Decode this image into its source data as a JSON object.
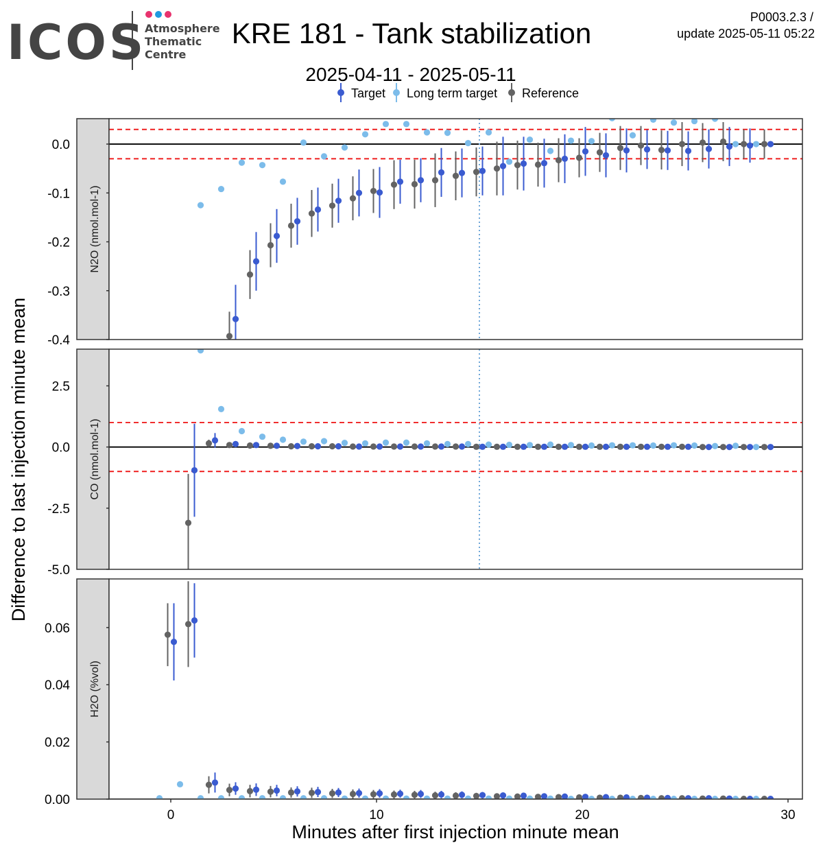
{
  "logo": {
    "wordmark": "ICOS",
    "line1": "Atmosphere",
    "line2": "Thematic",
    "line3": "Centre",
    "dot_colors": [
      "#e8336e",
      "#1f9ae0",
      "#e8336e"
    ]
  },
  "header": {
    "title": "KRE 181 - Tank stabilization",
    "subtitle": "2025-04-11 - 2025-05-11",
    "code": "P0003.2.3 /",
    "update": "update  2025-05-11 05:22"
  },
  "legend": [
    {
      "label": "Target",
      "color": "#3a5bd0"
    },
    {
      "label": "Long term target",
      "color": "#7cbcea"
    },
    {
      "label": "Reference",
      "color": "#636363"
    }
  ],
  "axes": {
    "xlabel": "Minutes after first injection minute mean",
    "ylabel": "Difference to last injection minute mean",
    "xlim": [
      -3,
      30.7
    ],
    "xticks": [
      {
        "v": 0,
        "t": "0"
      },
      {
        "v": 10,
        "t": "10"
      },
      {
        "v": 20,
        "t": "20"
      },
      {
        "v": 30,
        "t": "30"
      }
    ],
    "vline_x": 15
  },
  "chart_data": [
    {
      "type": "scatter",
      "strip_label": "N2O (nmol.mol-1)",
      "ylim": [
        -0.4,
        0.052
      ],
      "yticks": [
        {
          "v": 0.0,
          "t": "0.0"
        },
        {
          "v": -0.1,
          "t": "-0.1"
        },
        {
          "v": -0.2,
          "t": "-0.2"
        },
        {
          "v": -0.3,
          "t": "-0.3"
        },
        {
          "v": -0.4,
          "t": "-0.4"
        }
      ],
      "threshold": 0.03,
      "series": [
        {
          "name": "Reference",
          "x": [
            3,
            4,
            5,
            6,
            7,
            8,
            9,
            10,
            11,
            12,
            13,
            14,
            15,
            16,
            17,
            18,
            19,
            20,
            21,
            22,
            23,
            24,
            25,
            26,
            27,
            28,
            29
          ],
          "y": [
            -0.393,
            -0.267,
            -0.207,
            -0.167,
            -0.142,
            -0.126,
            -0.111,
            -0.096,
            -0.083,
            -0.082,
            -0.074,
            -0.065,
            -0.057,
            -0.05,
            -0.043,
            -0.042,
            -0.033,
            -0.028,
            -0.017,
            -0.008,
            -0.003,
            -0.012,
            0.0,
            0.003,
            0.005,
            0.0,
            0.0
          ],
          "err": [
            0.05,
            0.05,
            0.045,
            0.045,
            0.048,
            0.045,
            0.045,
            0.045,
            0.05,
            0.05,
            0.055,
            0.05,
            0.05,
            0.055,
            0.05,
            0.045,
            0.045,
            0.04,
            0.04,
            0.045,
            0.04,
            0.04,
            0.045,
            0.04,
            0.04,
            0.03,
            0.03
          ]
        },
        {
          "name": "Target",
          "x": [
            3,
            4,
            5,
            6,
            7,
            8,
            9,
            10,
            11,
            12,
            13,
            14,
            15,
            16,
            17,
            18,
            19,
            20,
            21,
            22,
            23,
            24,
            25,
            26,
            27,
            28,
            29
          ],
          "y": [
            -0.358,
            -0.24,
            -0.188,
            -0.158,
            -0.134,
            -0.116,
            -0.1,
            -0.099,
            -0.077,
            -0.074,
            -0.058,
            -0.059,
            -0.055,
            -0.045,
            -0.04,
            -0.039,
            -0.03,
            -0.015,
            -0.023,
            -0.013,
            -0.011,
            -0.013,
            -0.014,
            -0.01,
            -0.005,
            -0.003,
            0.0
          ],
          "err": [
            0.07,
            0.06,
            0.055,
            0.048,
            0.045,
            0.045,
            0.048,
            0.052,
            0.045,
            0.045,
            0.05,
            0.05,
            0.05,
            0.06,
            0.055,
            0.05,
            0.05,
            0.05,
            0.045,
            0.045,
            0.04,
            0.04,
            0.04,
            0.04,
            0.04,
            0.035,
            0.0
          ]
        },
        {
          "name": "Long term target",
          "x": [
            2,
            3,
            4,
            5,
            6,
            7,
            8,
            9,
            10,
            11,
            12,
            13,
            14,
            15,
            16,
            17,
            18,
            19,
            20,
            21,
            22,
            23,
            24,
            25,
            26,
            27,
            28,
            29
          ],
          "y": [
            -0.125,
            -0.092,
            -0.038,
            -0.043,
            -0.077,
            0.003,
            -0.025,
            -0.007,
            0.02,
            0.041,
            0.041,
            0.024,
            0.023,
            0.002,
            0.024,
            -0.036,
            0.009,
            -0.014,
            0.007,
            0.006,
            0.053,
            0.018,
            0.05,
            0.044,
            0.047,
            0.052,
            0.0,
            0.0
          ]
        }
      ]
    },
    {
      "type": "scatter",
      "strip_label": "CO (nmol.mol-1)",
      "ylim": [
        -5.0,
        4.0
      ],
      "yticks": [
        {
          "v": 2.5,
          "t": "2.5"
        },
        {
          "v": 0.0,
          "t": "0.0"
        },
        {
          "v": -2.5,
          "t": "-2.5"
        },
        {
          "v": -5.0,
          "t": "-5.0"
        }
      ],
      "threshold": 1.0,
      "series": [
        {
          "name": "Reference",
          "x": [
            1,
            2,
            3,
            4,
            5,
            6,
            7,
            8,
            9,
            10,
            11,
            12,
            13,
            14,
            15,
            16,
            17,
            18,
            19,
            20,
            21,
            22,
            23,
            24,
            25,
            26,
            27,
            28,
            29
          ],
          "y": [
            -3.1,
            0.15,
            0.08,
            0.06,
            0.05,
            0.03,
            0.03,
            0.03,
            0.02,
            0.02,
            0.02,
            0.02,
            0.02,
            0.02,
            0.01,
            0.01,
            0.01,
            0.01,
            0.01,
            0.01,
            0.01,
            0.01,
            0.01,
            0.01,
            0.01,
            0.0,
            0.0,
            0.0,
            0.0
          ],
          "err": [
            2.0,
            0.15,
            0.08,
            0.07,
            0.07,
            0.06,
            0.06,
            0.06,
            0.05,
            0.05,
            0.05,
            0.05,
            0.05,
            0.05,
            0.05,
            0.05,
            0.05,
            0.05,
            0.05,
            0.05,
            0.05,
            0.05,
            0.05,
            0.05,
            0.05,
            0.04,
            0.04,
            0.04,
            0.0
          ]
        },
        {
          "name": "Target",
          "x": [
            1,
            2,
            3,
            4,
            5,
            6,
            7,
            8,
            9,
            10,
            11,
            12,
            13,
            14,
            15,
            16,
            17,
            18,
            19,
            20,
            21,
            22,
            23,
            24,
            25,
            26,
            27,
            28,
            29
          ],
          "y": [
            -0.95,
            0.27,
            0.12,
            0.08,
            0.05,
            0.04,
            0.03,
            0.03,
            0.02,
            0.02,
            0.02,
            0.02,
            0.02,
            0.02,
            0.01,
            0.01,
            0.01,
            0.01,
            0.01,
            0.01,
            0.01,
            0.01,
            0.01,
            0.01,
            0.01,
            0.0,
            0.0,
            0.0,
            0.0
          ],
          "err": [
            1.9,
            0.3,
            0.1,
            0.08,
            0.07,
            0.06,
            0.06,
            0.06,
            0.05,
            0.05,
            0.05,
            0.05,
            0.05,
            0.05,
            0.05,
            0.05,
            0.05,
            0.05,
            0.05,
            0.05,
            0.05,
            0.05,
            0.05,
            0.05,
            0.05,
            0.04,
            0.04,
            0.04,
            0.0
          ]
        },
        {
          "name": "Long term target",
          "x": [
            2,
            3,
            4,
            5,
            6,
            7,
            8,
            9,
            10,
            11,
            12,
            13,
            14,
            15,
            16,
            17,
            18,
            19,
            20,
            21,
            22,
            23,
            24,
            25,
            26,
            27,
            28,
            29
          ],
          "y": [
            3.95,
            1.55,
            0.65,
            0.42,
            0.3,
            0.22,
            0.24,
            0.17,
            0.15,
            0.18,
            0.18,
            0.15,
            0.12,
            0.12,
            0.1,
            0.09,
            0.08,
            0.1,
            0.08,
            0.06,
            0.07,
            0.07,
            0.06,
            0.07,
            0.06,
            0.04,
            0.05,
            0.0
          ]
        }
      ]
    },
    {
      "type": "scatter",
      "strip_label": "H2O (%vol)",
      "ylim": [
        0.0,
        0.077
      ],
      "yticks": [
        {
          "v": 0.06,
          "t": "0.06"
        },
        {
          "v": 0.04,
          "t": "0.04"
        },
        {
          "v": 0.02,
          "t": "0.02"
        },
        {
          "v": 0.0,
          "t": "0.00"
        }
      ],
      "threshold": null,
      "series": [
        {
          "name": "Reference",
          "x": [
            0,
            1,
            2,
            3,
            4,
            5,
            6,
            7,
            8,
            9,
            10,
            11,
            12,
            13,
            14,
            15,
            16,
            17,
            18,
            19,
            20,
            21,
            22,
            23,
            24,
            25,
            26,
            27,
            28,
            29
          ],
          "y": [
            0.0575,
            0.0612,
            0.005,
            0.0032,
            0.0028,
            0.0026,
            0.0023,
            0.0022,
            0.002,
            0.0018,
            0.0017,
            0.0016,
            0.0015,
            0.0013,
            0.0012,
            0.0011,
            0.001,
            0.0009,
            0.0008,
            0.0007,
            0.0006,
            0.0005,
            0.0005,
            0.0004,
            0.0003,
            0.0003,
            0.0002,
            0.0002,
            0.0001,
            0.0001
          ],
          "err": [
            0.011,
            0.015,
            0.003,
            0.0022,
            0.0022,
            0.002,
            0.0018,
            0.0018,
            0.0016,
            0.0016,
            0.0015,
            0.0014,
            0.0014,
            0.0013,
            0.0012,
            0.0011,
            0.001,
            0.0009,
            0.0008,
            0.0007,
            0.0006,
            0.0005,
            0.0005,
            0.0004,
            0.0003,
            0.0003,
            0.0002,
            0.0002,
            0.0001,
            0.0
          ]
        },
        {
          "name": "Target",
          "x": [
            0,
            1,
            2,
            3,
            4,
            5,
            6,
            7,
            8,
            9,
            10,
            11,
            12,
            13,
            14,
            15,
            16,
            17,
            18,
            19,
            20,
            21,
            22,
            23,
            24,
            25,
            26,
            27,
            28,
            29
          ],
          "y": [
            0.055,
            0.0625,
            0.0058,
            0.0037,
            0.0033,
            0.003,
            0.0027,
            0.0025,
            0.0023,
            0.0021,
            0.002,
            0.0019,
            0.0018,
            0.0016,
            0.0015,
            0.0014,
            0.0013,
            0.0012,
            0.001,
            0.0009,
            0.0008,
            0.0007,
            0.0006,
            0.0005,
            0.0004,
            0.0003,
            0.0003,
            0.0002,
            0.0001,
            0.0001
          ],
          "err": [
            0.0135,
            0.013,
            0.0035,
            0.0022,
            0.0022,
            0.002,
            0.0018,
            0.0018,
            0.0016,
            0.0016,
            0.0015,
            0.0014,
            0.0014,
            0.0013,
            0.0012,
            0.0011,
            0.001,
            0.0009,
            0.0008,
            0.0007,
            0.0006,
            0.0005,
            0.0005,
            0.0004,
            0.0003,
            0.0003,
            0.0002,
            0.0002,
            0.0001,
            0.0
          ]
        },
        {
          "name": "Long term target",
          "x": [
            0,
            1,
            2,
            3,
            4,
            5,
            6,
            7,
            8,
            9,
            10,
            11,
            12,
            13,
            14,
            15,
            16,
            17,
            18,
            19,
            20,
            21,
            22,
            23,
            24,
            25,
            26,
            27,
            28,
            29
          ],
          "y": [
            0.0003,
            0.0052,
            0.0003,
            0.0003,
            0.0003,
            0.0003,
            0.0003,
            0.0003,
            0.0003,
            0.0002,
            0.0002,
            0.0002,
            0.0002,
            0.0002,
            0.0002,
            0.0002,
            0.0002,
            0.0002,
            0.0002,
            0.0002,
            0.0001,
            0.0001,
            0.0001,
            0.0001,
            0.0001,
            0.0001,
            0.0001,
            0.0001,
            0.0001,
            0.0001
          ]
        }
      ]
    }
  ]
}
